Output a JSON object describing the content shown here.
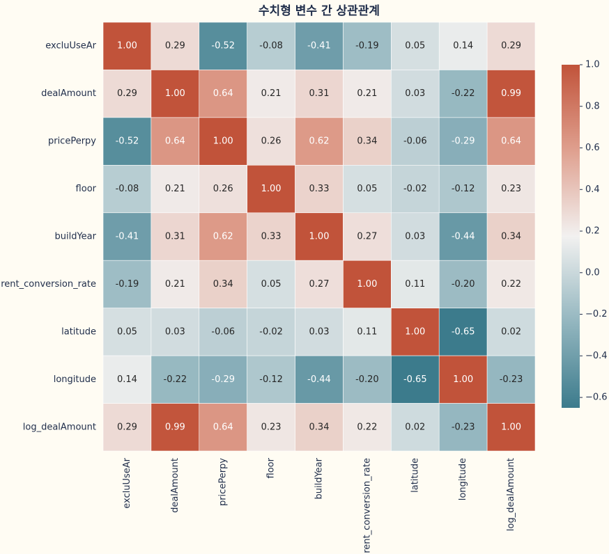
{
  "chart_data": {
    "type": "heatmap",
    "title": "수치형 변수 간 상관관계",
    "x_categories": [
      "excluUseAr",
      "dealAmount",
      "pricePerpy",
      "floor",
      "buildYear",
      "rent_conversion_rate",
      "latitude",
      "longitude",
      "log_dealAmount"
    ],
    "y_categories": [
      "excluUseAr",
      "dealAmount",
      "pricePerpy",
      "floor",
      "buildYear",
      "rent_conversion_rate",
      "latitude",
      "longitude",
      "log_dealAmount"
    ],
    "values": [
      [
        1,
        0.29,
        -0.52,
        -0.08,
        -0.41,
        -0.19,
        0.05,
        0.14,
        0.29
      ],
      [
        0.29,
        1,
        0.64,
        0.21,
        0.31,
        0.21,
        0.03,
        -0.22,
        0.99
      ],
      [
        -0.52,
        0.64,
        1,
        0.26,
        0.62,
        0.34,
        -0.06,
        -0.29,
        0.64
      ],
      [
        -0.08,
        0.21,
        0.26,
        1,
        0.33,
        0.05,
        -0.02,
        -0.12,
        0.23
      ],
      [
        -0.41,
        0.31,
        0.62,
        0.33,
        1,
        0.27,
        0.03,
        -0.44,
        0.34
      ],
      [
        -0.19,
        0.21,
        0.34,
        0.05,
        0.27,
        1,
        0.11,
        -0.2,
        0.22
      ],
      [
        0.05,
        0.03,
        -0.06,
        -0.02,
        0.03,
        0.11,
        1,
        -0.65,
        0.02
      ],
      [
        0.14,
        -0.22,
        -0.29,
        -0.12,
        -0.44,
        -0.2,
        -0.65,
        1,
        -0.23
      ],
      [
        0.29,
        0.99,
        0.64,
        0.23,
        0.34,
        0.22,
        0.02,
        -0.23,
        1
      ]
    ],
    "value_labels": [
      [
        "1.00",
        "0.29",
        "-0.52",
        "-0.08",
        "-0.41",
        "-0.19",
        "0.05",
        "0.14",
        "0.29"
      ],
      [
        "0.29",
        "1.00",
        "0.64",
        "0.21",
        "0.31",
        "0.21",
        "0.03",
        "-0.22",
        "0.99"
      ],
      [
        "-0.52",
        "0.64",
        "1.00",
        "0.26",
        "0.62",
        "0.34",
        "-0.06",
        "-0.29",
        "0.64"
      ],
      [
        "-0.08",
        "0.21",
        "0.26",
        "1.00",
        "0.33",
        "0.05",
        "-0.02",
        "-0.12",
        "0.23"
      ],
      [
        "-0.41",
        "0.31",
        "0.62",
        "0.33",
        "1.00",
        "0.27",
        "0.03",
        "-0.44",
        "0.34"
      ],
      [
        "-0.19",
        "0.21",
        "0.34",
        "0.05",
        "0.27",
        "1.00",
        "0.11",
        "-0.20",
        "0.22"
      ],
      [
        "0.05",
        "0.03",
        "-0.06",
        "-0.02",
        "0.03",
        "0.11",
        "1.00",
        "-0.65",
        "0.02"
      ],
      [
        "0.14",
        "-0.22",
        "-0.29",
        "-0.12",
        "-0.44",
        "-0.20",
        "-0.65",
        "1.00",
        "-0.23"
      ],
      [
        "0.29",
        "0.99",
        "0.64",
        "0.23",
        "0.34",
        "0.22",
        "0.02",
        "-0.23",
        "1.00"
      ]
    ],
    "colormap": [
      "#3c7b8c",
      "#93b6bf",
      "#f2f1f0",
      "#dfa08f",
      "#c1533a"
    ],
    "clim": [
      -0.65,
      1
    ],
    "cticks": [
      {
        "value": 1,
        "label": "1.0"
      },
      {
        "value": 0.8,
        "label": "0.8"
      },
      {
        "value": 0.6,
        "label": "0.6"
      },
      {
        "value": 0.4,
        "label": "0.4"
      },
      {
        "value": 0.2,
        "label": "0.2"
      },
      {
        "value": 0,
        "label": "0.0"
      },
      {
        "value": -0.2,
        "label": "−0.2"
      },
      {
        "value": -0.4,
        "label": "−0.4"
      },
      {
        "value": -0.6,
        "label": "−0.6"
      }
    ]
  }
}
